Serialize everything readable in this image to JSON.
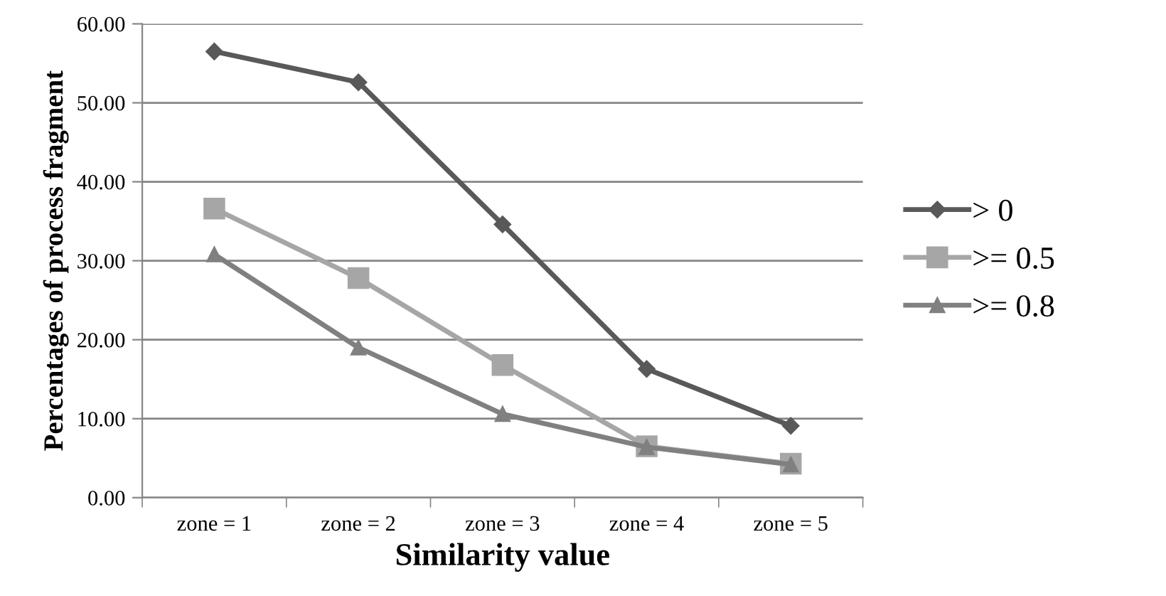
{
  "chart_data": {
    "type": "line",
    "xlabel": "Similarity value",
    "ylabel": "Percentages of process fragment",
    "categories": [
      "zone = 1",
      "zone = 2",
      "zone = 3",
      "zone = 4",
      "zone = 5"
    ],
    "series": [
      {
        "name": "> 0",
        "color": "#595959",
        "marker": "diamond",
        "values": [
          56.5,
          52.6,
          34.6,
          16.3,
          9.1
        ]
      },
      {
        "name": ">= 0.5",
        "color": "#a6a6a6",
        "marker": "square",
        "values": [
          36.6,
          27.8,
          16.8,
          6.5,
          4.3
        ]
      },
      {
        "name": ">= 0.8",
        "color": "#808080",
        "marker": "triangle",
        "values": [
          30.8,
          19.0,
          10.6,
          6.4,
          4.2
        ]
      }
    ],
    "ylim": [
      0,
      60
    ],
    "yticks": [
      {
        "value": 0,
        "label": "0.00"
      },
      {
        "value": 10,
        "label": "10.00"
      },
      {
        "value": 20,
        "label": "20.00"
      },
      {
        "value": 30,
        "label": "30.00"
      },
      {
        "value": 40,
        "label": "40.00"
      },
      {
        "value": 50,
        "label": "50.00"
      },
      {
        "value": 60,
        "label": "60.00"
      }
    ],
    "grid": "y",
    "legend": "right",
    "line_style": "solid"
  }
}
